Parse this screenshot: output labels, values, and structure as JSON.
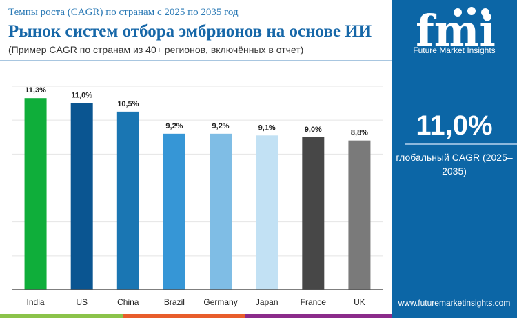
{
  "header": {
    "subtitle_top": "Темпы роста (CAGR) по странам с 2025 по 2035 год",
    "title": "Рынок систем отбора эмбрионов на основе ИИ",
    "subtitle": "(Пример CAGR по странам из 40+ регионов, включённых в отчет)"
  },
  "panel": {
    "logo_text": "Future Market Insights",
    "logo_letters": "fmi",
    "value": "11,0%",
    "label": "глобальный CAGR (2025–2035)",
    "url": "www.futuremarketinsights.com",
    "bg": "#0c66a6"
  },
  "chart_data": {
    "type": "bar",
    "categories": [
      "India",
      "US",
      "China",
      "Brazil",
      "Germany",
      "Japan",
      "France",
      "UK"
    ],
    "values": [
      11.3,
      11.0,
      10.5,
      9.2,
      9.2,
      9.1,
      9.0,
      8.8
    ],
    "labels": [
      "11,3%",
      "11,0%",
      "10,5%",
      "9,2%",
      "9,2%",
      "9,1%",
      "9,0%",
      "8,8%"
    ],
    "colors": [
      "#0fae3a",
      "#0a5591",
      "#1a76b3",
      "#3696d6",
      "#7fbde5",
      "#c2e1f4",
      "#474747",
      "#7a7a7a"
    ],
    "ylim": [
      0,
      12
    ],
    "grid": true,
    "grid_step": 2
  },
  "footer_colors": [
    "#8bc34a",
    "#e85d2b",
    "#8b2b8a"
  ]
}
